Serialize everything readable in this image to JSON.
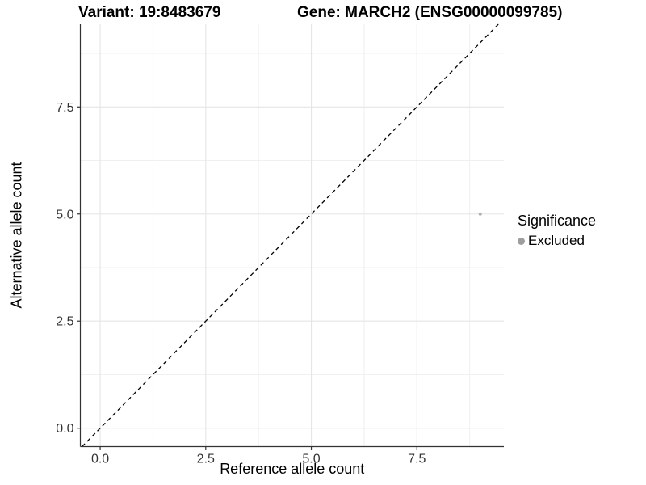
{
  "header": {
    "variant_title": "Variant: 19:8483679",
    "gene_title": "Gene: MARCH2 (ENSG00000099785)"
  },
  "chart_data": {
    "type": "scatter",
    "title_left": "Variant: 19:8483679",
    "title_right": "Gene: MARCH2 (ENSG00000099785)",
    "xlabel": "Reference allele count",
    "ylabel": "Alternative allele count",
    "xlim": [
      -0.47,
      9.56
    ],
    "ylim": [
      -0.43,
      9.43
    ],
    "x_ticks": [
      0,
      2.5,
      5,
      7.5
    ],
    "x_tick_labels": [
      "0.0",
      "2.5",
      "5.0",
      "7.5"
    ],
    "y_ticks": [
      0,
      2.5,
      5,
      7.5
    ],
    "y_tick_labels": [
      "0.0",
      "2.5",
      "5.0",
      "7.5"
    ],
    "x_minor_ticks": [
      1.25,
      3.75,
      6.25,
      8.75
    ],
    "y_minor_ticks": [
      1.25,
      3.75,
      6.25,
      8.75
    ],
    "grid": "on",
    "legend_position": "right",
    "series": [
      {
        "name": "Excluded",
        "color": "#b0b0b0",
        "point_radius": 2,
        "points": [
          {
            "x": 9,
            "y": 5
          }
        ]
      }
    ],
    "reference_line": {
      "kind": "identity y=x",
      "linetype": "dashed",
      "color": "#000000"
    },
    "legend": {
      "title": "Significance",
      "items": [
        {
          "label": "Excluded",
          "color": "#9e9e9e"
        }
      ]
    }
  },
  "colors": {
    "background": "#ffffff",
    "grid_major": "#e5e5e5",
    "grid_minor": "#f0f0f0",
    "axis_line": "#333333",
    "tick_label": "#333333"
  }
}
